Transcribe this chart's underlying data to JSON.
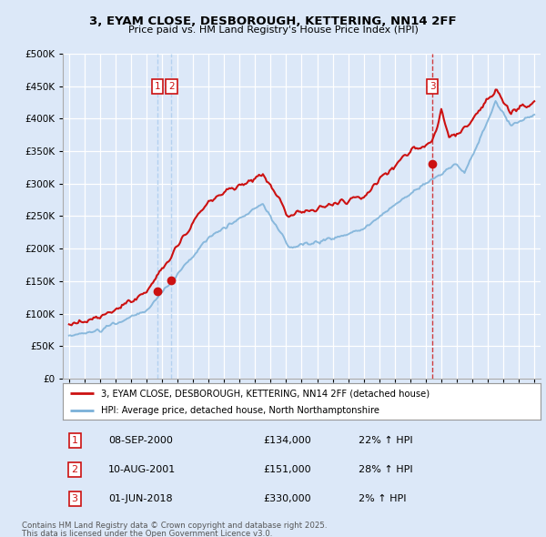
{
  "title1": "3, EYAM CLOSE, DESBOROUGH, KETTERING, NN14 2FF",
  "title2": "Price paid vs. HM Land Registry's House Price Index (HPI)",
  "background_color": "#dce8f8",
  "plot_bg_color": "#dce8f8",
  "red_color": "#cc1111",
  "blue_color": "#7ab0d8",
  "legend1": "3, EYAM CLOSE, DESBOROUGH, KETTERING, NN14 2FF (detached house)",
  "legend2": "HPI: Average price, detached house, North Northamptonshire",
  "transactions": [
    {
      "num": 1,
      "date": "08-SEP-2000",
      "price": "£134,000",
      "pct": "22% ↑ HPI",
      "x": 2000.69
    },
    {
      "num": 2,
      "date": "10-AUG-2001",
      "price": "£151,000",
      "pct": "28% ↑ HPI",
      "x": 2001.61
    },
    {
      "num": 3,
      "date": "01-JUN-2018",
      "price": "£330,000",
      "pct": "2% ↑ HPI",
      "x": 2018.42
    }
  ],
  "footer1": "Contains HM Land Registry data © Crown copyright and database right 2025.",
  "footer2": "This data is licensed under the Open Government Licence v3.0.",
  "ylim": [
    0,
    500000
  ],
  "yticks": [
    0,
    50000,
    100000,
    150000,
    200000,
    250000,
    300000,
    350000,
    400000,
    450000,
    500000
  ],
  "xmin": 1994.6,
  "xmax": 2025.4
}
